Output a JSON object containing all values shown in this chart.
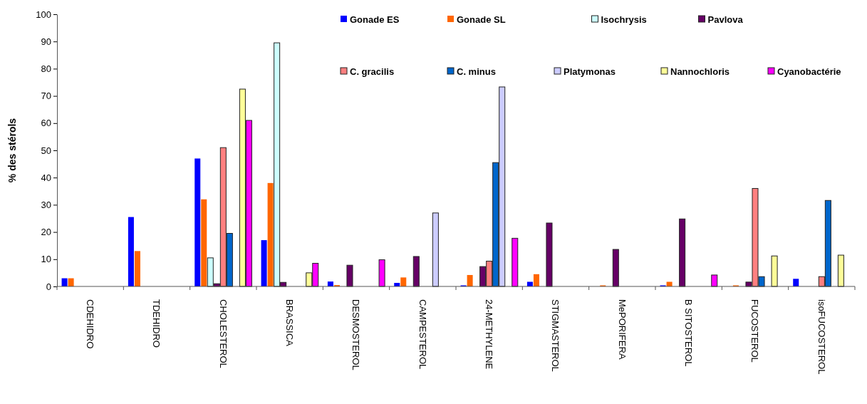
{
  "chart_data": {
    "type": "bar",
    "ylabel": "% des stérols",
    "categories": [
      "CDEHIDRO",
      "TDEHIDRO",
      "CHOLESTEROL",
      "BRASSICA",
      "DESMOSTEROL",
      "CAMPESTEROL",
      "24-METHYLENE",
      "STIGMASTEROL",
      "MePORIFERA",
      "B SITOSTEROL",
      "FUCOSTEROL",
      "isoFUCOSTEROL"
    ],
    "series": [
      {
        "name": "Gonade ES",
        "color": "#0000ff",
        "values": [
          3,
          25.5,
          47,
          17,
          1.8,
          1.3,
          0.4,
          1.7,
          null,
          0.4,
          null,
          2.8
        ]
      },
      {
        "name": "Gonade SL",
        "color": "#ff6600",
        "values": [
          3,
          13,
          32,
          38,
          0.5,
          3.3,
          4.2,
          4.5,
          0.4,
          1.7,
          0.4,
          null
        ]
      },
      {
        "name": "Isochrysis",
        "color": "#ccffff",
        "values": [
          null,
          null,
          10.5,
          89.5,
          null,
          null,
          null,
          null,
          null,
          null,
          null,
          null
        ]
      },
      {
        "name": "Pavlova",
        "color": "#660066",
        "values": [
          null,
          null,
          1,
          1.5,
          7.8,
          11,
          7.3,
          23.3,
          13.6,
          24.8,
          1.6,
          null
        ]
      },
      {
        "name": "C. gracilis",
        "color": "#ff8080",
        "values": [
          null,
          null,
          51,
          null,
          null,
          null,
          9.3,
          null,
          null,
          null,
          36,
          3.6
        ]
      },
      {
        "name": "C. minus",
        "color": "#0066cc",
        "values": [
          null,
          null,
          19.5,
          null,
          null,
          null,
          45.5,
          null,
          null,
          null,
          3.6,
          31.6
        ]
      },
      {
        "name": "Platymonas",
        "color": "#ccccff",
        "values": [
          null,
          null,
          null,
          null,
          null,
          27,
          73.3,
          null,
          null,
          null,
          null,
          null
        ]
      },
      {
        "name": "Nannochloris",
        "color": "#ffff99",
        "values": [
          null,
          null,
          72.5,
          5,
          null,
          null,
          null,
          null,
          null,
          null,
          11.2,
          11.5
        ]
      },
      {
        "name": "Cyanobactérie",
        "color": "#ff00ff",
        "values": [
          null,
          null,
          61,
          8.5,
          9.8,
          null,
          17.7,
          null,
          null,
          4.2,
          null,
          null
        ]
      }
    ],
    "ylim": [
      0,
      100
    ],
    "yticks": [
      0,
      10,
      20,
      30,
      40,
      50,
      60,
      70,
      80,
      90,
      100
    ],
    "grid": false,
    "legend": "top right"
  }
}
